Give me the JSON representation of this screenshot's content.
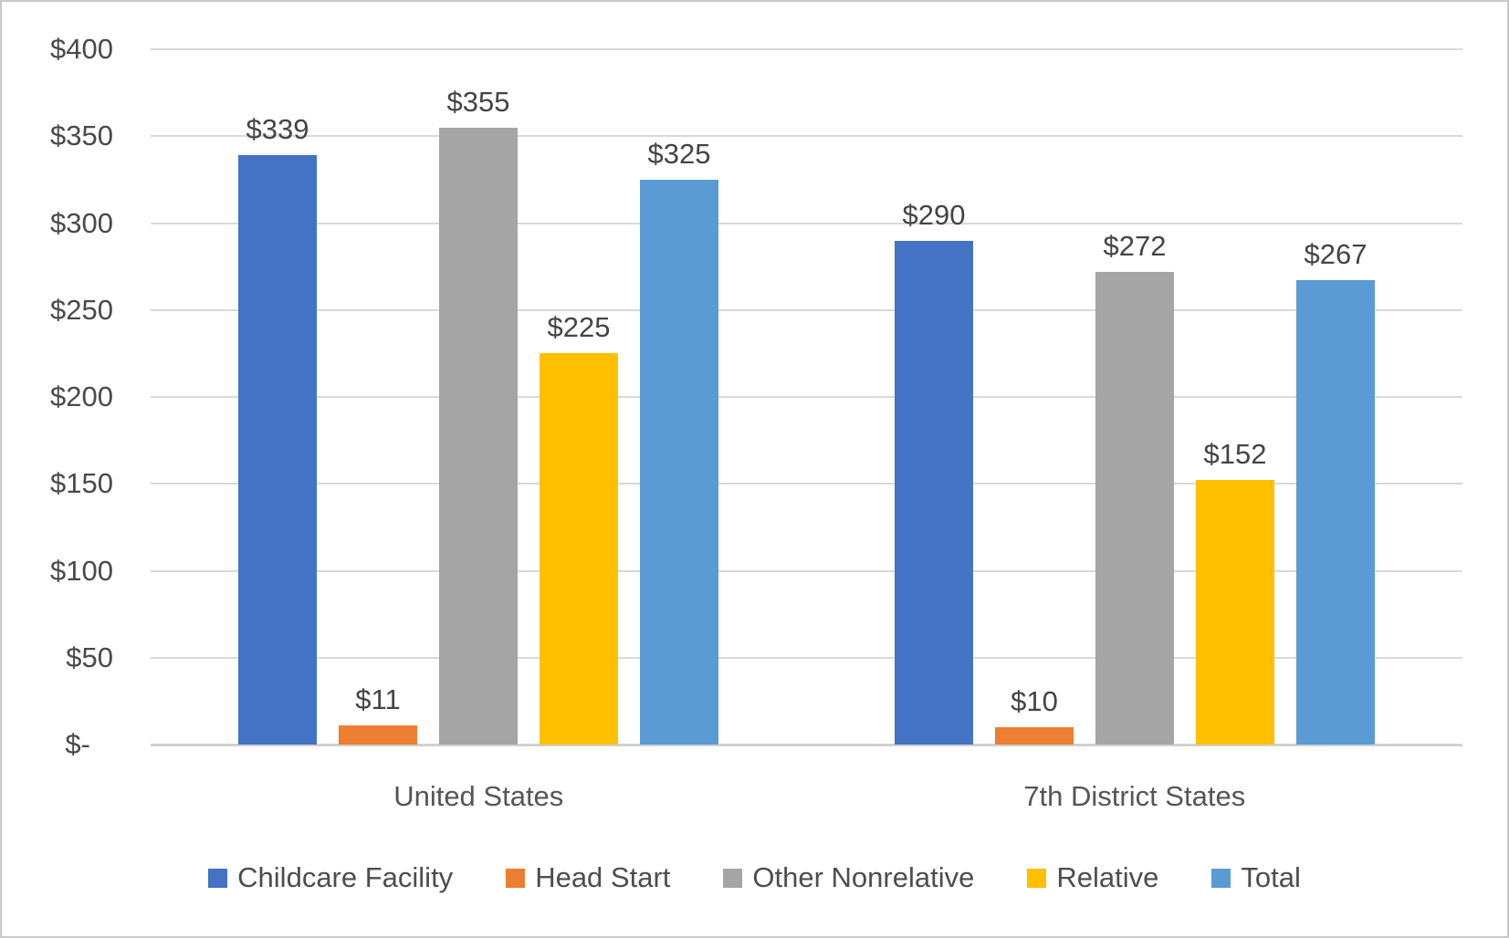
{
  "chart": {
    "background": "#FFFFFF",
    "frame_border_color": "#C9C9C9",
    "text_color": "#494949",
    "gridline_color": "#D9D9D9",
    "axis_line_color": "#D0D0D0"
  },
  "chart_data": {
    "type": "bar",
    "title": "",
    "categories": [
      "United States",
      "7th District States"
    ],
    "series": [
      {
        "name": "Childcare Facility",
        "color": "#4472C4",
        "values": [
          339,
          290
        ],
        "labels": [
          "$339",
          "$290"
        ]
      },
      {
        "name": "Head Start",
        "color": "#ED7D31",
        "values": [
          11,
          10
        ],
        "labels": [
          "$11",
          "$10"
        ]
      },
      {
        "name": "Other Nonrelative",
        "color": "#A5A5A5",
        "values": [
          355,
          272
        ],
        "labels": [
          "$355",
          "$272"
        ]
      },
      {
        "name": "Relative",
        "color": "#FFC000",
        "values": [
          225,
          152
        ],
        "labels": [
          "$225",
          "$152"
        ]
      },
      {
        "name": "Total",
        "color": "#5B9BD5",
        "values": [
          325,
          267
        ],
        "labels": [
          "$325",
          "$267"
        ]
      }
    ],
    "y_axis": {
      "min": 0,
      "max": 400,
      "step": 50,
      "tick_labels": [
        "$400",
        "$350",
        "$300",
        "$250",
        "$200",
        "$150",
        "$100",
        "$50",
        "$-"
      ]
    },
    "xlabel": "",
    "ylabel": "",
    "grid": true,
    "legend": {
      "position": "bottom",
      "labels": [
        "Childcare Facility",
        "Head Start",
        "Other Nonrelative",
        "Relative",
        "Total"
      ]
    }
  }
}
